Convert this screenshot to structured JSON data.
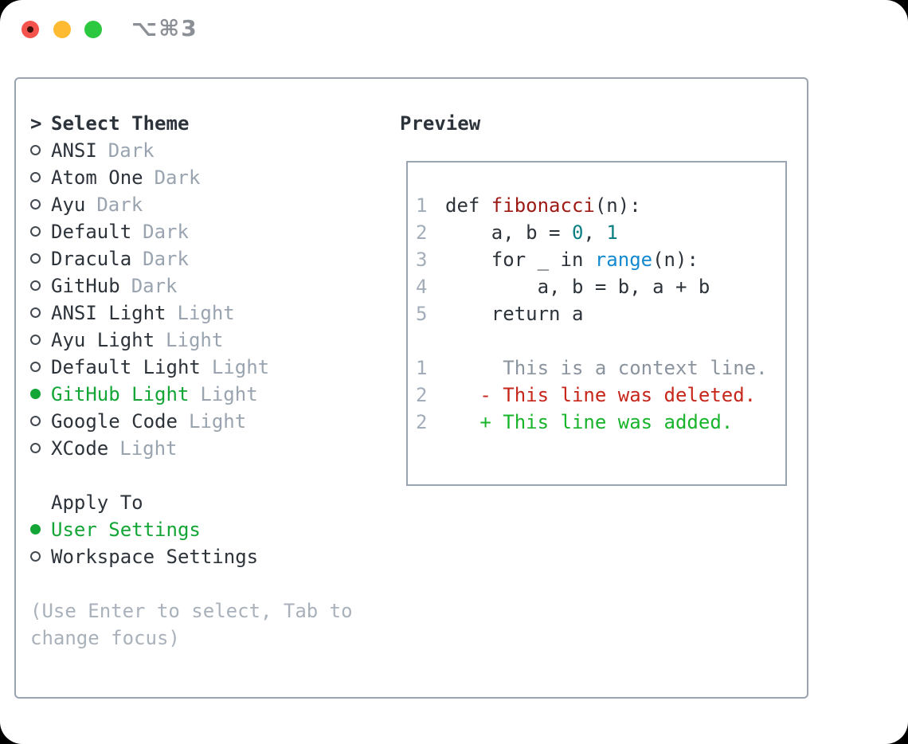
{
  "window": {
    "title": "⌥⌘3"
  },
  "icons": {
    "traffic_lights": [
      "close",
      "minimize",
      "zoom"
    ]
  },
  "colors": {
    "text": "#2d333a",
    "muted": "#9aa4b0",
    "hint": "#a9b1bb",
    "lineno": "#a3adb9",
    "accent": "#13a535",
    "add": "#17b42c",
    "del": "#c7271b",
    "func": "#9c1a13",
    "builtin": "#1389cf",
    "number": "#0b7f81",
    "border": "#9aa3b0",
    "title": "#8b8f96"
  },
  "sidebar": {
    "header": {
      "prefix": ">",
      "label": "Select Theme"
    },
    "themes": [
      {
        "name": "ANSI",
        "variant": "Dark",
        "selected": false
      },
      {
        "name": "Atom One",
        "variant": "Dark",
        "selected": false
      },
      {
        "name": "Ayu",
        "variant": "Dark",
        "selected": false
      },
      {
        "name": "Default",
        "variant": "Dark",
        "selected": false
      },
      {
        "name": "Dracula",
        "variant": "Dark",
        "selected": false
      },
      {
        "name": "GitHub",
        "variant": "Dark",
        "selected": false
      },
      {
        "name": "ANSI Light",
        "variant": "Light",
        "selected": false
      },
      {
        "name": "Ayu Light",
        "variant": "Light",
        "selected": false
      },
      {
        "name": "Default Light",
        "variant": "Light",
        "selected": false
      },
      {
        "name": "GitHub Light",
        "variant": "Light",
        "selected": true
      },
      {
        "name": "Google Code",
        "variant": "Light",
        "selected": false
      },
      {
        "name": "XCode",
        "variant": "Light",
        "selected": false
      }
    ],
    "apply_to": {
      "label": "Apply To",
      "options": [
        {
          "name": "User Settings",
          "selected": true
        },
        {
          "name": "Workspace Settings",
          "selected": false
        }
      ]
    },
    "hint_lines": [
      "(Use Enter to select, Tab to",
      "change focus)"
    ]
  },
  "preview": {
    "label": "Preview",
    "code_lines": [
      {
        "lineno": "1",
        "segments": [
          {
            "text": "def ",
            "style": "plain"
          },
          {
            "text": "fibonacci",
            "style": "function"
          },
          {
            "text": "(n):",
            "style": "plain"
          }
        ]
      },
      {
        "lineno": "2",
        "segments": [
          {
            "text": "    a, b = ",
            "style": "plain"
          },
          {
            "text": "0",
            "style": "number"
          },
          {
            "text": ", ",
            "style": "plain"
          },
          {
            "text": "1",
            "style": "number"
          }
        ]
      },
      {
        "lineno": "3",
        "segments": [
          {
            "text": "    for _ in ",
            "style": "plain"
          },
          {
            "text": "range",
            "style": "builtin"
          },
          {
            "text": "(n):",
            "style": "plain"
          }
        ]
      },
      {
        "lineno": "4",
        "segments": [
          {
            "text": "        a, b = b, a + b",
            "style": "plain"
          }
        ]
      },
      {
        "lineno": "5",
        "segments": [
          {
            "text": "    return a",
            "style": "plain"
          }
        ]
      },
      {
        "lineno": "",
        "segments": []
      },
      {
        "lineno": "1",
        "segments": [
          {
            "text": "     This is a context line.",
            "style": "context"
          }
        ]
      },
      {
        "lineno": "2",
        "segments": [
          {
            "text": "   - This line was deleted.",
            "style": "deleted"
          }
        ]
      },
      {
        "lineno": "2",
        "segments": [
          {
            "text": "   + This line was added.",
            "style": "added"
          }
        ]
      }
    ]
  }
}
